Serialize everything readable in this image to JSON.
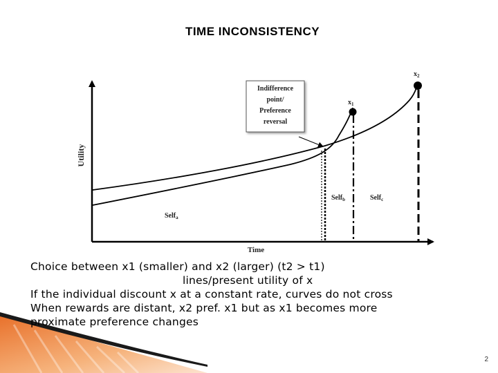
{
  "slide": {
    "title": "TIME INCONSISTENCY",
    "page_number": "2"
  },
  "diagram": {
    "y_axis_label": "Utility",
    "x_axis_label": "Time",
    "callout": {
      "line1": "Indifference",
      "line2": "point/",
      "line3": "Preference",
      "line4": "reversal"
    },
    "reward_small": {
      "letter": "x",
      "sub": "1"
    },
    "reward_large": {
      "letter": "x",
      "sub": "2"
    },
    "self_a": {
      "name": "Self",
      "sub": "a"
    },
    "self_b": {
      "name": "Self",
      "sub": "b"
    },
    "self_c": {
      "name": "Self",
      "sub": "c"
    }
  },
  "text": {
    "line1": "Choice between x1 (smaller) and x2 (larger)  (t2 > t1)",
    "line2": "lines/present utility of x",
    "line3": "If the individual discount x at a constant rate, curves do not cross",
    "line4": "When rewards are distant, x2 pref. x1 but as x1 becomes more",
    "line5": "proximate preference changes"
  },
  "colors": {
    "accent_orange": "#e8702a",
    "accent_light": "#f6b37c"
  }
}
